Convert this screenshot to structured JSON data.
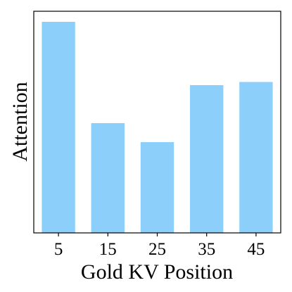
{
  "chart_data": {
    "type": "bar",
    "categories": [
      "5",
      "15",
      "25",
      "35",
      "45"
    ],
    "values": [
      1.0,
      0.52,
      0.43,
      0.7,
      0.715
    ],
    "title": "",
    "xlabel": "Gold KV Position",
    "ylabel": "Attention",
    "ylim": [
      0,
      1.05
    ],
    "y_ticks_shown": false,
    "grid": false,
    "legend": "none",
    "bar_color": "#8ccffb"
  }
}
